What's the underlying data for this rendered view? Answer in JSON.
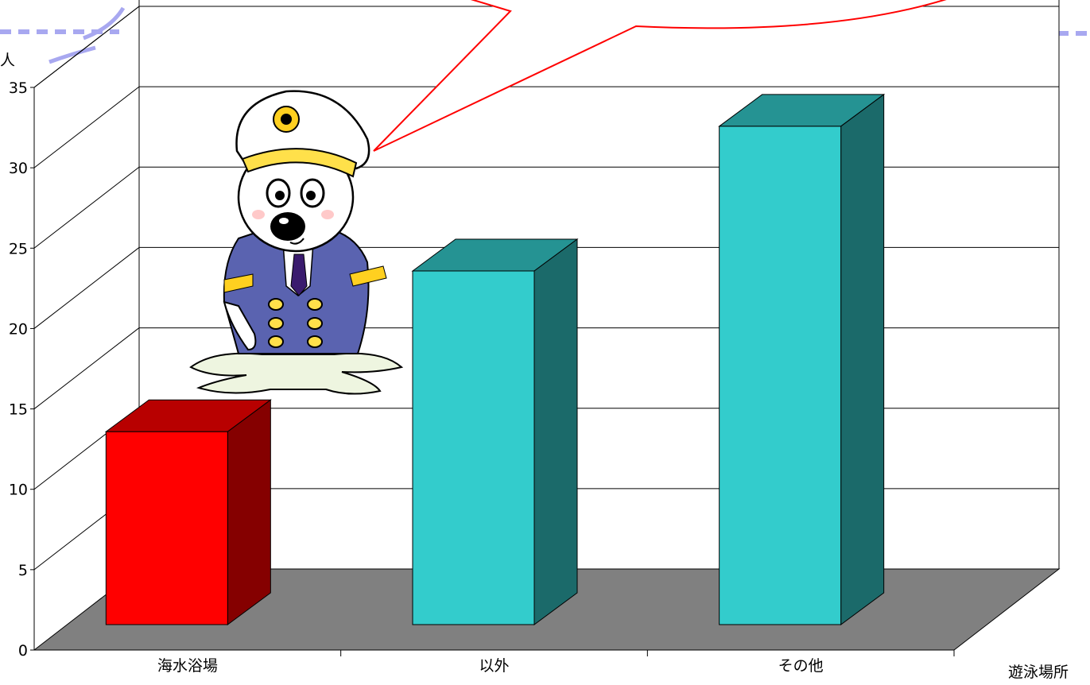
{
  "chart_data": {
    "type": "bar",
    "title": "",
    "ylabel": "人",
    "xlabel": "遊泳場所",
    "categories": [
      "海水浴場",
      "以外",
      "その他"
    ],
    "values": [
      12,
      22,
      31
    ],
    "bar_colors": [
      "#ff0000",
      "#33cccc",
      "#33cccc"
    ],
    "ylim": [
      0,
      35
    ],
    "yticks": [
      0,
      5,
      10,
      15,
      20,
      25,
      30,
      35
    ],
    "grid": true,
    "style": "3d",
    "legend": "none"
  },
  "decor": {
    "mascot": "seal-mascot-captain",
    "speech_bubble": true,
    "bubble_stroke": "#ff0000",
    "slide_accent": "#a8a8f0"
  }
}
